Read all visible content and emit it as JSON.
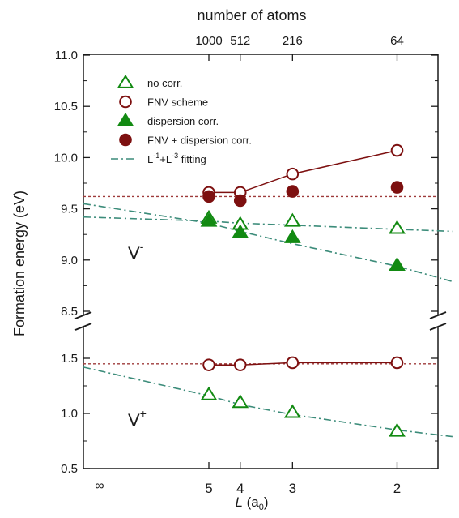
{
  "chart_data": {
    "type": "scatter",
    "top_axis_label": "number of atoms",
    "top_ticks": [
      {
        "label": "1000",
        "L": 5
      },
      {
        "label": "512",
        "L": 4
      },
      {
        "label": "216",
        "L": 3
      },
      {
        "label": "64",
        "L": 2
      }
    ],
    "ylabel": "Formation energy (eV)",
    "xlabel_main": "L",
    "xlabel_rest": " (a",
    "xlabel_sub": "0",
    "xlabel_end": ")",
    "x_scale": "reciprocal",
    "x_ticks": [
      {
        "label": "∞",
        "L": "inf"
      },
      {
        "label": "5",
        "L": 5
      },
      {
        "label": "4",
        "L": 4
      },
      {
        "label": "3",
        "L": 3
      },
      {
        "label": "2",
        "L": 2
      }
    ],
    "y_axis_break": true,
    "y_upper": {
      "range": [
        8.5,
        11.0
      ],
      "ticks": [
        "8.5",
        "9.0",
        "9.5",
        "10.0",
        "10.5",
        "11.0"
      ]
    },
    "y_lower": {
      "range": [
        0.5,
        1.75
      ],
      "ticks": [
        "0.5",
        "1.0",
        "1.5"
      ]
    },
    "panel_labels": {
      "upper": {
        "main": "V",
        "sup": "-"
      },
      "lower": {
        "main": "V",
        "sup": "+"
      }
    },
    "legend": [
      {
        "key": "no_corr",
        "label": "no corr.",
        "marker": "triangle-open"
      },
      {
        "key": "fnv",
        "label": "FNV scheme",
        "marker": "circle-open"
      },
      {
        "key": "disp",
        "label": "dispersion corr.",
        "marker": "triangle-filled"
      },
      {
        "key": "fnv_disp",
        "label": "FNV + dispersion corr.",
        "marker": "circle-filled"
      },
      {
        "key": "fit",
        "label_parts": [
          "L",
          "-1",
          "+L",
          "-3",
          " fitting"
        ],
        "marker": "dash-dot"
      }
    ],
    "colors": {
      "green": "#128a12",
      "darkred": "#7d1010",
      "fit": "#3c8c7a",
      "ref": "#9e3a3a",
      "axis": "#1a1a1a"
    },
    "series": [
      {
        "key": "no_corr",
        "panel": "upper",
        "L": [
          5,
          4,
          3,
          2
        ],
        "y": [
          9.41,
          9.35,
          9.38,
          9.31
        ]
      },
      {
        "key": "fnv",
        "panel": "upper",
        "connect": true,
        "L": [
          5,
          4,
          3,
          2
        ],
        "y": [
          9.66,
          9.66,
          9.84,
          10.07
        ]
      },
      {
        "key": "disp",
        "panel": "upper",
        "L": [
          5,
          4,
          3,
          2
        ],
        "y": [
          9.38,
          9.27,
          9.22,
          8.95
        ]
      },
      {
        "key": "fnv_disp",
        "panel": "upper",
        "L": [
          5,
          4,
          3,
          2
        ],
        "y": [
          9.62,
          9.58,
          9.67,
          9.71
        ]
      },
      {
        "key": "no_corr",
        "panel": "lower",
        "L": [
          5,
          4,
          3,
          2
        ],
        "y": [
          1.17,
          1.1,
          1.01,
          0.84
        ]
      },
      {
        "key": "fnv",
        "panel": "lower",
        "connect": true,
        "L": [
          5,
          4,
          3,
          2
        ],
        "y": [
          1.44,
          1.44,
          1.46,
          1.46
        ]
      }
    ],
    "fits": [
      {
        "panel": "upper",
        "L": [
          "inf",
          5,
          4,
          3,
          2,
          1.7
        ],
        "y": [
          9.42,
          9.38,
          9.36,
          9.34,
          9.3,
          9.28
        ]
      },
      {
        "panel": "upper",
        "L": [
          "inf",
          5,
          4,
          3,
          2,
          1.7
        ],
        "y": [
          9.55,
          9.36,
          9.28,
          9.16,
          8.94,
          8.79
        ]
      },
      {
        "panel": "lower",
        "L": [
          "inf",
          5,
          4,
          3,
          2,
          1.7
        ],
        "y": [
          1.42,
          1.16,
          1.08,
          0.99,
          0.85,
          0.79
        ]
      }
    ],
    "reference_lines": [
      {
        "panel": "upper",
        "y": 9.62
      },
      {
        "panel": "lower",
        "y": 1.45
      }
    ]
  }
}
